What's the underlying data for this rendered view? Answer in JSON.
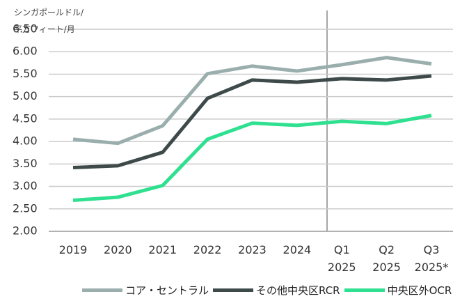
{
  "chart_data": {
    "type": "line",
    "y_label": "シンガポールドル/\n平方フィート/月",
    "categories": [
      "2019",
      "2020",
      "2021",
      "2022",
      "2023",
      "2024",
      "Q1\n2025",
      "Q2\n2025",
      "Q3\n2025*"
    ],
    "series": [
      {
        "name": "コア・セントラル",
        "color": "#9aafad",
        "values": [
          4.05,
          3.96,
          4.35,
          5.51,
          5.68,
          5.57,
          5.71,
          5.87,
          5.73
        ]
      },
      {
        "name": "その他中央区RCR",
        "color": "#3e4a4a",
        "values": [
          3.42,
          3.46,
          3.76,
          4.96,
          5.37,
          5.32,
          5.4,
          5.37,
          5.46
        ]
      },
      {
        "name": "中央区外OCR",
        "color": "#2ee08f",
        "values": [
          2.69,
          2.76,
          3.02,
          4.05,
          4.41,
          4.36,
          4.45,
          4.4,
          4.58
        ]
      }
    ],
    "ylim": [
      2,
      6.5
    ],
    "yticks": [
      {
        "value": 2,
        "label": "2.00"
      },
      {
        "value": 2.5,
        "label": "2.50"
      },
      {
        "value": 3,
        "label": "3.00"
      },
      {
        "value": 3.5,
        "label": "3.50"
      },
      {
        "value": 4,
        "label": "4.00"
      },
      {
        "value": 4.5,
        "label": "4.50"
      },
      {
        "value": 5,
        "label": "5.00"
      },
      {
        "value": 5.5,
        "label": "5.50"
      },
      {
        "value": 6,
        "label": "6.00"
      },
      {
        "value": 6.5,
        "label": "6.50"
      }
    ],
    "grid": true
  }
}
